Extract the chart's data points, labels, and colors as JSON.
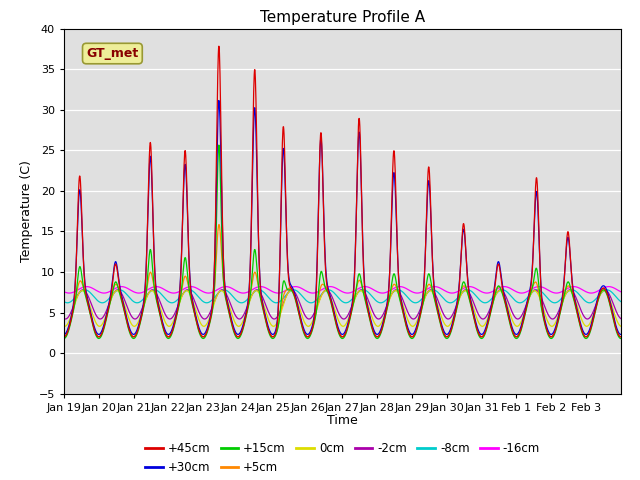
{
  "title": "Temperature Profile A",
  "xlabel": "Time",
  "ylabel": "Temperature (C)",
  "ylim": [
    -5,
    40
  ],
  "yticks": [
    -5,
    0,
    5,
    10,
    15,
    20,
    25,
    30,
    35,
    40
  ],
  "xtick_labels": [
    "Jan 19",
    "Jan 20",
    "Jan 21",
    "Jan 22",
    "Jan 23",
    "Jan 24",
    "Jan 25",
    "Jan 26",
    "Jan 27",
    "Jan 28",
    "Jan 29",
    "Jan 30",
    "Jan 31",
    "Feb 1",
    "Feb 2",
    "Feb 3"
  ],
  "colors": {
    "+45cm": "#dd0000",
    "+30cm": "#0000dd",
    "+15cm": "#00cc00",
    "+5cm": "#ff8800",
    "0cm": "#dddd00",
    "-2cm": "#aa00aa",
    "-8cm": "#00cccc",
    "-16cm": "#ff00ff"
  },
  "bg_color": "#e0e0e0",
  "legend_box_facecolor": "#eeee99",
  "legend_box_edgecolor": "#999933",
  "legend_box_text": "GT_met",
  "legend_text_color": "#880000",
  "n_points": 2000,
  "days": 16
}
